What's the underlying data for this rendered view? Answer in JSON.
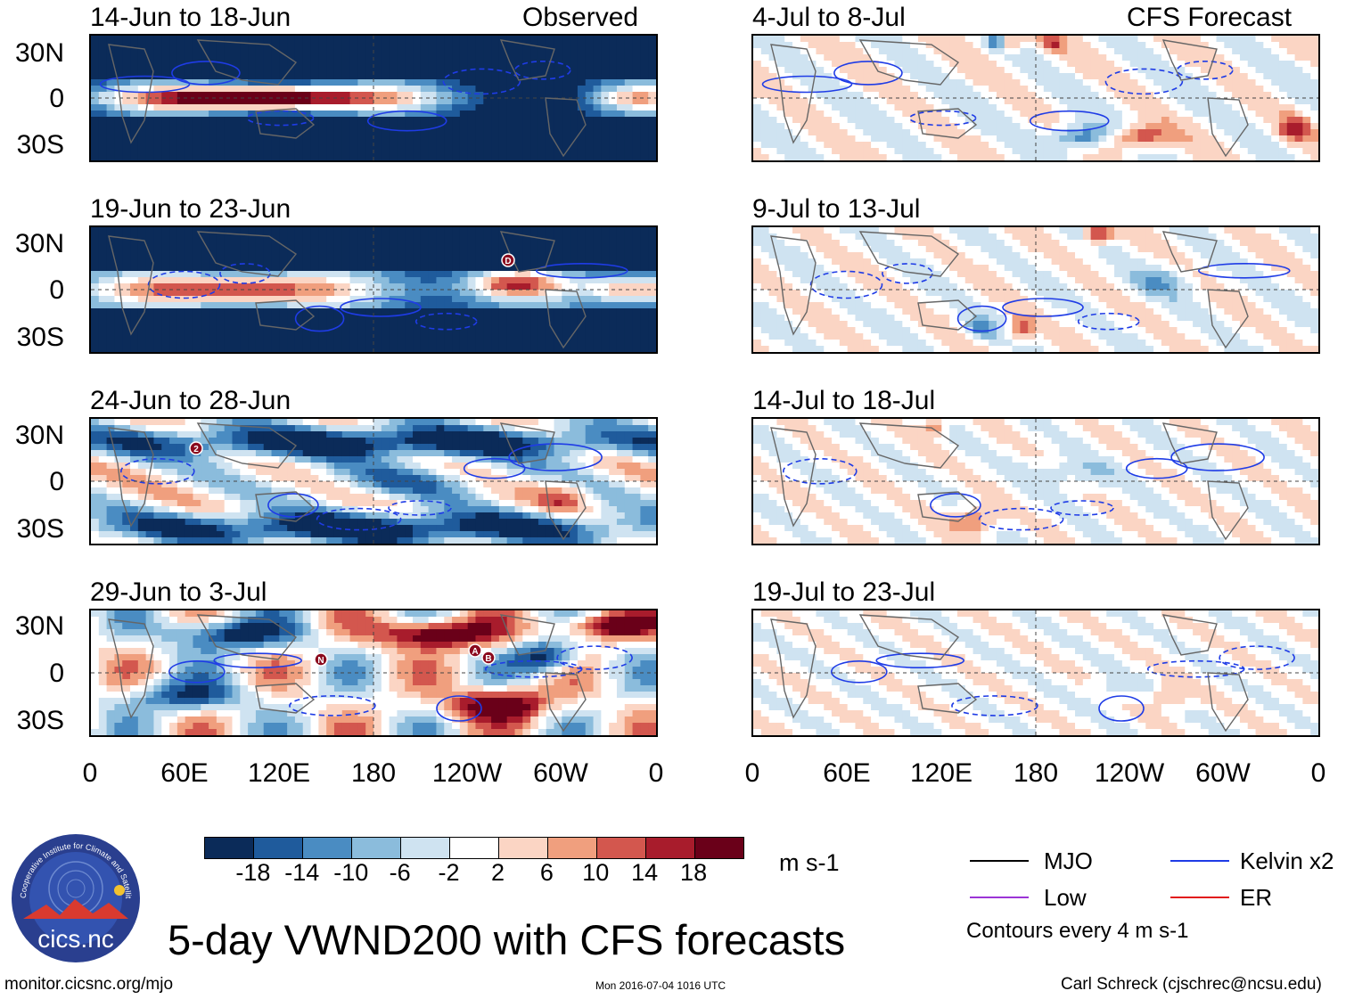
{
  "title": "5-day VWND200 with CFS forecasts",
  "footer": {
    "left": "monitor.cicsnc.org/mjo",
    "center": "Mon 2016-07-04 1016 UTC",
    "right": "Carl Schreck (cjschrec@ncsu.edu)"
  },
  "logo": {
    "text": "cics.nc",
    "ring_text": "Cooperative Institute for Climate and Satellites"
  },
  "columns": {
    "left_label": "Observed",
    "right_label": "CFS Forecast"
  },
  "panels_left": [
    {
      "date": "14-Jun to 18-Jun",
      "mode": "obs1"
    },
    {
      "date": "19-Jun to 23-Jun",
      "mode": "obs2"
    },
    {
      "date": "24-Jun to 28-Jun",
      "mode": "obs3"
    },
    {
      "date": "29-Jun to 3-Jul",
      "mode": "obs4"
    }
  ],
  "panels_right": [
    {
      "date": "4-Jul to 8-Jul",
      "mode": "fc1"
    },
    {
      "date": "9-Jul to 13-Jul",
      "mode": "fc2"
    },
    {
      "date": "14-Jul to 18-Jul",
      "mode": "fc3"
    },
    {
      "date": "19-Jul to 23-Jul",
      "mode": "fc4"
    }
  ],
  "storm_markers": [
    {
      "label": "D",
      "panel": "left-1"
    },
    {
      "label": "2",
      "panel": "left-2"
    },
    {
      "label": "N",
      "panel": "left-3"
    },
    {
      "label": "A",
      "panel": "left-3"
    },
    {
      "label": "B",
      "panel": "left-3"
    }
  ],
  "chart_data": {
    "type": "heatmap",
    "variable": "VWND200",
    "y_ticks": [
      "30N",
      "0",
      "30S"
    ],
    "x_ticks": [
      "0",
      "60E",
      "120E",
      "180",
      "120W",
      "60W",
      "0"
    ],
    "colorbar": {
      "units": "m s-1",
      "ticks": [
        "-18",
        "-14",
        "-10",
        "-6",
        "-2",
        "2",
        "6",
        "10",
        "14",
        "18"
      ],
      "colors": [
        "#0b2b59",
        "#1f5b9c",
        "#4a8cc2",
        "#8bbcdc",
        "#cfe3f1",
        "#ffffff",
        "#fbd5c4",
        "#f09f7e",
        "#d3574e",
        "#a81c2c",
        "#6a0019"
      ]
    },
    "legend": [
      {
        "label": "MJO",
        "color": "#000000"
      },
      {
        "label": "Kelvin x2",
        "color": "#1f3ce6"
      },
      {
        "label": "Low",
        "color": "#9b34d6"
      },
      {
        "label": "ER",
        "color": "#e21b1b"
      }
    ],
    "contour_note": "Contours every 4 m s-1"
  }
}
